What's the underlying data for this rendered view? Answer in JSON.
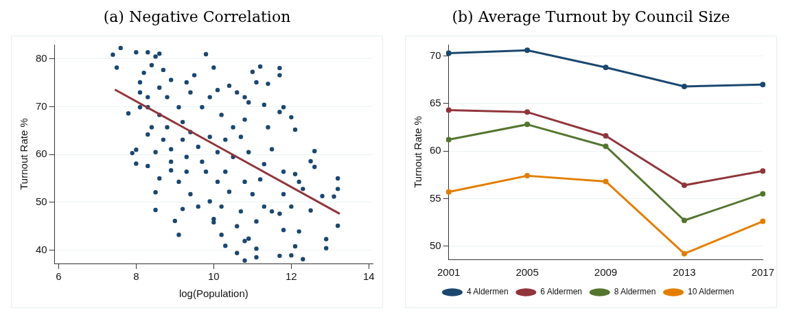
{
  "chart_data": [
    {
      "type": "scatter",
      "title": "(a) Negative Correlation",
      "xlabel": "log(Population)",
      "ylabel": "Turnout Rate %",
      "xlim": [
        5.9,
        14.1
      ],
      "xticks": [
        6,
        8,
        10,
        12,
        14
      ],
      "ylim": [
        37.2,
        83
      ],
      "yticks": [
        40,
        50,
        60,
        70,
        80
      ],
      "grid": "y",
      "legend": false,
      "marker": "circle",
      "series": [
        {
          "color": "#1a476f",
          "x": [
            7.4,
            7.6,
            7.5,
            8.0,
            8.3,
            8.5,
            8.6,
            9.8,
            7.8,
            7.9,
            8.0,
            8.0,
            8.3,
            8.6,
            8.5,
            8.5,
            9.0,
            9.1,
            9.2,
            10.2,
            10.3,
            10.6,
            10.8,
            11.1,
            11.1,
            11.7,
            12.0,
            12.3,
            12.9,
            12.9,
            13.2,
            13.2,
            13.2,
            13.1,
            12.8,
            12.6,
            12.6,
            12.5,
            12.5,
            11.7,
            11.7,
            11.2,
            11.0,
            10.4,
            10.0,
            9.5,
            11.8,
            12.0,
            12.1,
            11.7,
            11.4,
            11.3,
            11.4,
            11.5,
            11.5,
            11.7,
            11.8,
            12.1,
            12.2,
            12.0,
            12.2,
            12.3,
            11.8,
            11.8,
            12.1,
            10.7,
            10.8,
            10.9,
            11.1,
            11.3,
            10.6,
            10.0,
            10.0,
            9.6,
            9.4,
            9.1,
            8.9,
            9.9,
            10.2,
            10.4,
            10.8,
            11.0,
            11.2,
            11.3,
            10.9,
            10.7,
            10.8,
            10.8,
            10.6,
            10.9,
            11.1,
            10.2,
            10.1,
            9.9,
            9.7,
            9.4,
            9.3,
            8.9,
            8.7,
            8.4,
            8.2,
            8.1,
            8.1,
            8.3,
            8.6,
            8.8,
            9.1,
            8.6,
            8.4,
            8.8,
            9.2,
            8.7,
            8.9,
            9.2,
            9.4,
            9.6,
            9.3,
            9.7,
            9.9,
            10.1,
            9.8,
            10.1,
            10.3,
            10.5,
            10.3,
            10.5,
            8.3,
            8.1,
            8.3,
            8.5,
            9.3,
            8.9
          ],
          "values": [
            80.9,
            82.3,
            78.2,
            81.4,
            81.4,
            80.5,
            81.1,
            81.0,
            68.6,
            60.3,
            58.1,
            61.0,
            57.6,
            55.0,
            52.1,
            48.4,
            46.1,
            43.2,
            48.6,
            43.2,
            40.9,
            39.4,
            37.8,
            38.5,
            40.3,
            38.8,
            38.9,
            38.1,
            40.4,
            42.3,
            45.1,
            55.0,
            52.8,
            51.2,
            51.3,
            60.7,
            57.4,
            58.6,
            48.3,
            78.1,
            76.6,
            78.4,
            77.3,
            74.4,
            78.2,
            76.6,
            69.9,
            67.8,
            65.2,
            68.9,
            74.8,
            70.4,
            65.7,
            61.1,
            48.1,
            47.6,
            44.2,
            40.8,
            43.9,
            49.1,
            54.3,
            52.8,
            51.7,
            56.4,
            55.9,
            48.1,
            41.9,
            42.4,
            46.0,
            49.1,
            45.0,
            46.5,
            45.8,
            49.1,
            51.7,
            54.3,
            56.7,
            50.2,
            49.1,
            52.2,
            54.3,
            51.7,
            54.8,
            58.0,
            60.5,
            63.7,
            67.3,
            72.0,
            73.0,
            70.9,
            75.1,
            68.3,
            73.5,
            72.0,
            69.9,
            73.0,
            75.1,
            75.6,
            77.7,
            78.7,
            77.1,
            75.1,
            73.0,
            72.0,
            74.0,
            72.0,
            69.9,
            68.3,
            65.7,
            65.7,
            66.8,
            63.1,
            61.1,
            63.1,
            64.7,
            61.6,
            59.5,
            58.5,
            63.7,
            60.5,
            56.4,
            54.3,
            56.4,
            59.5,
            63.1,
            65.7,
            69.9,
            69.9,
            64.2,
            60.5,
            56.4,
            58.5
          ]
        },
        {
          "type": "line",
          "color": "#90353b",
          "marker": "none",
          "x": [
            7.45,
            13.25
          ],
          "values": [
            73.6,
            47.6
          ]
        }
      ]
    },
    {
      "type": "line",
      "title": "(b) Average Turnout by Council Size",
      "ylabel": "Turnout Rate %",
      "categories": [
        "2001",
        "2005",
        "2009",
        "2013",
        "2017"
      ],
      "ylim": [
        48.6,
        71.2
      ],
      "yticks": [
        50,
        55,
        60,
        65,
        70
      ],
      "grid": "y",
      "legend": "bottom",
      "marker": "circle",
      "series": [
        {
          "name": "4 Aldermen",
          "color": "#1a476f",
          "values": [
            70.3,
            70.6,
            68.8,
            66.8,
            67.0
          ]
        },
        {
          "name": "6 Aldermen",
          "color": "#90353b",
          "values": [
            64.3,
            64.1,
            61.6,
            56.4,
            57.9
          ]
        },
        {
          "name": "8 Aldermen",
          "color": "#55752f",
          "values": [
            61.2,
            62.8,
            60.5,
            52.7,
            55.5
          ]
        },
        {
          "name": "10 Aldermen",
          "color": "#e37e00",
          "values": [
            55.7,
            57.4,
            56.8,
            49.2,
            52.6
          ]
        }
      ]
    }
  ]
}
